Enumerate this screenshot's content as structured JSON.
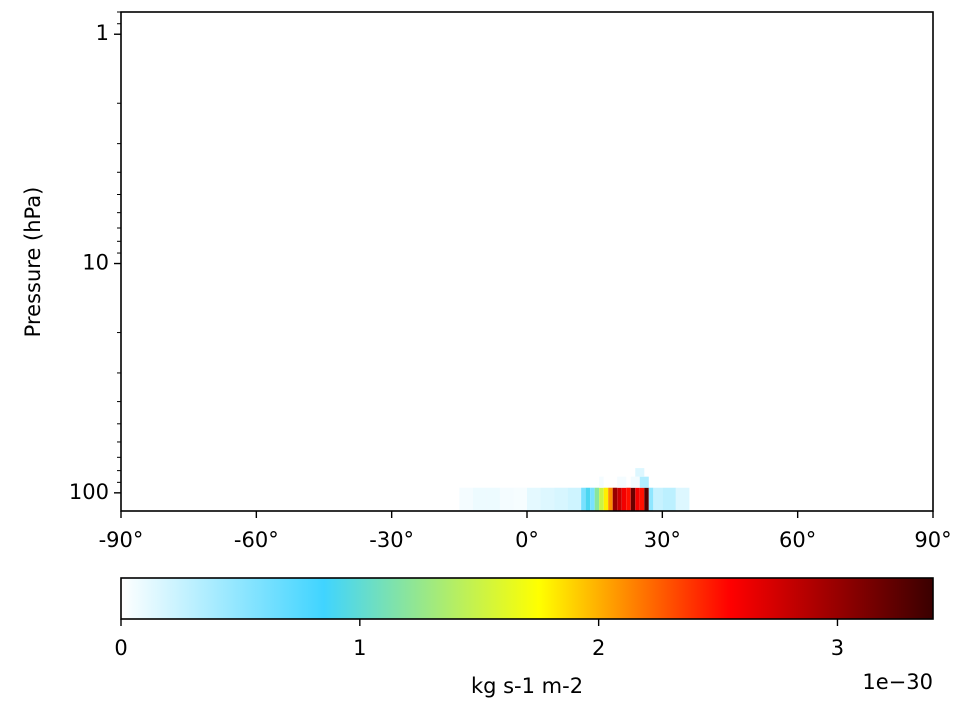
{
  "chart_data": {
    "type": "heatmap",
    "title": "",
    "xlabel": "",
    "ylabel": "Pressure (hPa)",
    "xlim": [
      -90,
      90
    ],
    "ylim": [
      120,
      0.8
    ],
    "yscale": "log",
    "x_ticks": [
      {
        "value": -90,
        "label": "-90°"
      },
      {
        "value": -60,
        "label": "-60°"
      },
      {
        "value": -30,
        "label": "-30°"
      },
      {
        "value": 0,
        "label": "0°"
      },
      {
        "value": 30,
        "label": "30°"
      },
      {
        "value": 60,
        "label": "60°"
      },
      {
        "value": 90,
        "label": "90°"
      }
    ],
    "y_ticks": [
      {
        "value": 1,
        "label": "1"
      },
      {
        "value": 10,
        "label": "10"
      },
      {
        "value": 100,
        "label": "100"
      }
    ],
    "cells": [
      {
        "lat": -13.5,
        "w": 3,
        "p0": 120,
        "p1": 95,
        "v": 0.05
      },
      {
        "lat": -10.5,
        "w": 3,
        "p0": 120,
        "p1": 95,
        "v": 0.08
      },
      {
        "lat": -7.5,
        "w": 3,
        "p0": 120,
        "p1": 95,
        "v": 0.08
      },
      {
        "lat": -4.5,
        "w": 3,
        "p0": 120,
        "p1": 95,
        "v": 0.05
      },
      {
        "lat": -1.5,
        "w": 3,
        "p0": 120,
        "p1": 95,
        "v": 0.04
      },
      {
        "lat": 1.5,
        "w": 3,
        "p0": 120,
        "p1": 95,
        "v": 0.12
      },
      {
        "lat": 4.5,
        "w": 3,
        "p0": 120,
        "p1": 95,
        "v": 0.15
      },
      {
        "lat": 7.5,
        "w": 3,
        "p0": 120,
        "p1": 95,
        "v": 0.18
      },
      {
        "lat": 10.5,
        "w": 3,
        "p0": 120,
        "p1": 95,
        "v": 0.22
      },
      {
        "lat": 12.5,
        "w": 1,
        "p0": 120,
        "p1": 95,
        "v": 0.6
      },
      {
        "lat": 13.5,
        "w": 1,
        "p0": 120,
        "p1": 95,
        "v": 0.9
      },
      {
        "lat": 14.5,
        "w": 1,
        "p0": 120,
        "p1": 95,
        "v": 0.6
      },
      {
        "lat": 15.5,
        "w": 1,
        "p0": 120,
        "p1": 95,
        "v": 1.2
      },
      {
        "lat": 16.5,
        "w": 1,
        "p0": 120,
        "p1": 95,
        "v": 1.5
      },
      {
        "lat": 17.5,
        "w": 1,
        "p0": 120,
        "p1": 95,
        "v": 1.8
      },
      {
        "lat": 18.5,
        "w": 1,
        "p0": 120,
        "p1": 95,
        "v": 2.1
      },
      {
        "lat": 19.5,
        "w": 1,
        "p0": 120,
        "p1": 95,
        "v": 3.0
      },
      {
        "lat": 20.5,
        "w": 1,
        "p0": 120,
        "p1": 95,
        "v": 2.8
      },
      {
        "lat": 21.5,
        "w": 1,
        "p0": 120,
        "p1": 95,
        "v": 2.6
      },
      {
        "lat": 22.5,
        "w": 1,
        "p0": 120,
        "p1": 95,
        "v": 2.5
      },
      {
        "lat": 23.5,
        "w": 1,
        "p0": 120,
        "p1": 95,
        "v": 3.2
      },
      {
        "lat": 24.5,
        "w": 1,
        "p0": 120,
        "p1": 95,
        "v": 2.6
      },
      {
        "lat": 25.5,
        "w": 1,
        "p0": 120,
        "p1": 95,
        "v": 2.5
      },
      {
        "lat": 26.5,
        "w": 1,
        "p0": 120,
        "p1": 95,
        "v": 3.3
      },
      {
        "lat": 27.5,
        "w": 1,
        "p0": 120,
        "p1": 95,
        "v": 0.5
      },
      {
        "lat": 29.0,
        "w": 2,
        "p0": 120,
        "p1": 95,
        "v": 0.25
      },
      {
        "lat": 31.5,
        "w": 3,
        "p0": 120,
        "p1": 95,
        "v": 0.3
      },
      {
        "lat": 34.5,
        "w": 3,
        "p0": 120,
        "p1": 95,
        "v": 0.15
      },
      {
        "lat": 16.5,
        "w": 1,
        "p0": 95,
        "p1": 85,
        "v": 0.05
      },
      {
        "lat": 21.0,
        "w": 2,
        "p0": 95,
        "p1": 85,
        "v": 0.05
      },
      {
        "lat": 24.0,
        "w": 2,
        "p0": 95,
        "p1": 85,
        "v": 0.06
      },
      {
        "lat": 26.0,
        "w": 2,
        "p0": 95,
        "p1": 85,
        "v": 0.35
      },
      {
        "lat": 25.0,
        "w": 2,
        "p0": 85,
        "p1": 78,
        "v": 0.15
      }
    ],
    "colorbar": {
      "ticks": [
        {
          "value": 0,
          "label": "0"
        },
        {
          "value": 1,
          "label": "1"
        },
        {
          "value": 2,
          "label": "2"
        },
        {
          "value": 3,
          "label": "3"
        }
      ],
      "vmin": 0,
      "vmax": 3.4,
      "label": "kg s-1 m-2",
      "scale_label": "1e−30",
      "cmap": [
        {
          "v": 0.0,
          "c": "#ffffff"
        },
        {
          "v": 0.85,
          "c": "#40d4ff"
        },
        {
          "v": 1.75,
          "c": "#ffff00"
        },
        {
          "v": 2.55,
          "c": "#ff0000"
        },
        {
          "v": 3.4,
          "c": "#3a0000"
        }
      ]
    }
  }
}
